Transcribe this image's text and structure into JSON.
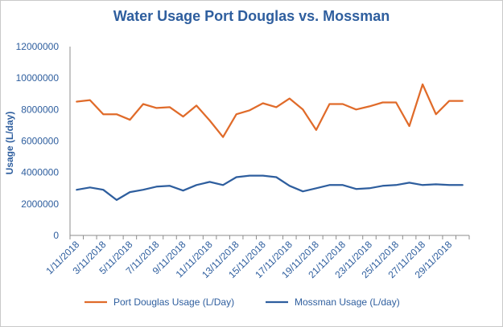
{
  "chart_data": {
    "type": "line",
    "title": "Water Usage Port Douglas vs. Mossman",
    "xlabel": "",
    "ylabel": "Usage (L/day)",
    "ylim": [
      0,
      12000000
    ],
    "yticks": [
      "0",
      "2000000",
      "4000000",
      "6000000",
      "8000000",
      "10000000",
      "12000000"
    ],
    "x": [
      "1/11/2018",
      "2/11/2018",
      "3/11/2018",
      "4/11/2018",
      "5/11/2018",
      "6/11/2018",
      "7/11/2018",
      "8/11/2018",
      "9/11/2018",
      "10/11/2018",
      "11/11/2018",
      "12/11/2018",
      "13/11/2018",
      "14/11/2018",
      "15/11/2018",
      "16/11/2018",
      "17/11/2018",
      "18/11/2018",
      "19/11/2018",
      "20/11/2018",
      "21/11/2018",
      "22/11/2018",
      "23/11/2018",
      "24/11/2018",
      "25/11/2018",
      "26/11/2018",
      "27/11/2018",
      "28/11/2018",
      "29/11/2018",
      "30/11/2018"
    ],
    "xtick_labels": [
      "1/11/2018",
      "3/11/2018",
      "5/11/2018",
      "7/11/2018",
      "9/11/2018",
      "11/11/2018",
      "13/11/2018",
      "15/11/2018",
      "17/11/2018",
      "19/11/2018",
      "21/11/2018",
      "23/11/2018",
      "25/11/2018",
      "27/11/2018",
      "29/11/2018"
    ],
    "grid": false,
    "legend_position": "bottom",
    "series": [
      {
        "name": "Port Douglas Usage (L/Day)",
        "color": "#e06b2a",
        "values": [
          8500000,
          8600000,
          7700000,
          7700000,
          7350000,
          8350000,
          8100000,
          8150000,
          7550000,
          8250000,
          7300000,
          6250000,
          7700000,
          7950000,
          8400000,
          8150000,
          8700000,
          8000000,
          6700000,
          8350000,
          8350000,
          8000000,
          8200000,
          8450000,
          8450000,
          6950000,
          9600000,
          7700000,
          8550000,
          8550000
        ]
      },
      {
        "name": "Mossman Usage (L/day)",
        "color": "#2e5e9e",
        "values": [
          2900000,
          3050000,
          2900000,
          2250000,
          2750000,
          2900000,
          3100000,
          3150000,
          2850000,
          3200000,
          3400000,
          3200000,
          3700000,
          3800000,
          3800000,
          3700000,
          3150000,
          2800000,
          3000000,
          3200000,
          3200000,
          2950000,
          3000000,
          3150000,
          3200000,
          3350000,
          3200000,
          3250000,
          3200000,
          3200000
        ]
      }
    ]
  }
}
